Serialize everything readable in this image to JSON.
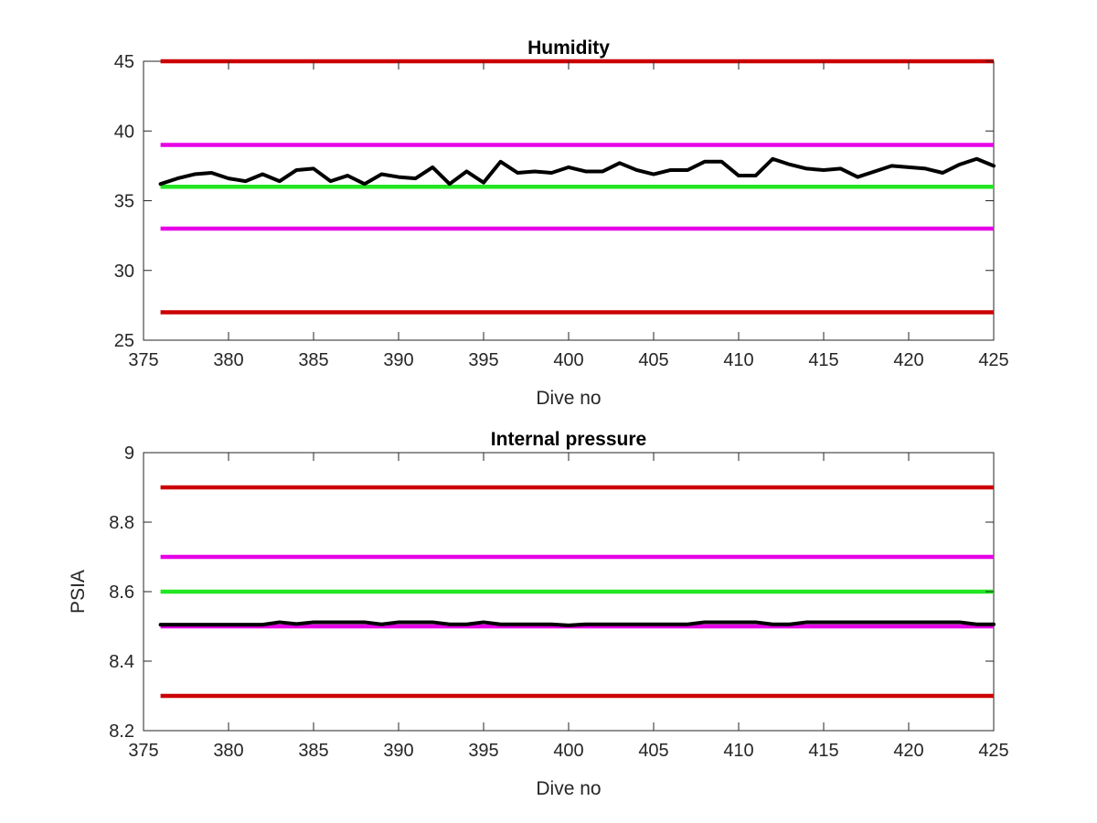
{
  "chart_data": [
    {
      "type": "line",
      "title": "Humidity",
      "xlabel": "Dive no",
      "ylabel": "",
      "xlim": [
        375,
        425
      ],
      "ylim": [
        25,
        45
      ],
      "xticks": [
        375,
        380,
        385,
        390,
        395,
        400,
        405,
        410,
        415,
        420,
        425
      ],
      "yticks": [
        25,
        30,
        35,
        40,
        45
      ],
      "xtick_labels": [
        "375",
        "380",
        "385",
        "390",
        "395",
        "400",
        "405",
        "410",
        "415",
        "420",
        "425"
      ],
      "ytick_labels": [
        "25",
        "30",
        "35",
        "40",
        "45"
      ],
      "grid": false,
      "legend": "none",
      "thresholds": [
        {
          "value": 45,
          "color": "#cc0000",
          "x_range": [
            376,
            425
          ]
        },
        {
          "value": 39,
          "color": "#e600e6",
          "x_range": [
            376,
            425
          ]
        },
        {
          "value": 36,
          "color": "#22e622",
          "x_range": [
            376,
            425
          ]
        },
        {
          "value": 33,
          "color": "#e600e6",
          "x_range": [
            376,
            425
          ]
        },
        {
          "value": 27,
          "color": "#cc0000",
          "x_range": [
            376,
            425
          ]
        }
      ],
      "series": [
        {
          "color": "#000000",
          "x": [
            376,
            377,
            378,
            379,
            380,
            381,
            382,
            383,
            384,
            385,
            386,
            387,
            388,
            389,
            390,
            391,
            392,
            393,
            394,
            395,
            396,
            397,
            398,
            399,
            400,
            401,
            402,
            403,
            404,
            405,
            406,
            407,
            408,
            409,
            410,
            411,
            412,
            413,
            414,
            415,
            416,
            417,
            418,
            419,
            420,
            421,
            422,
            423,
            424,
            425
          ],
          "values": [
            36.2,
            36.6,
            36.9,
            37.0,
            36.6,
            36.4,
            36.9,
            36.4,
            37.2,
            37.3,
            36.4,
            36.8,
            36.2,
            36.9,
            36.7,
            36.6,
            37.4,
            36.2,
            37.1,
            36.3,
            37.8,
            37.0,
            37.1,
            37.0,
            37.4,
            37.1,
            37.1,
            37.7,
            37.2,
            36.9,
            37.2,
            37.2,
            37.8,
            37.8,
            36.8,
            36.8,
            38.0,
            37.6,
            37.3,
            37.2,
            37.3,
            36.7,
            37.1,
            37.5,
            37.4,
            37.3,
            37.0,
            37.6,
            38.0,
            37.5
          ]
        }
      ]
    },
    {
      "type": "line",
      "title": "Internal pressure",
      "xlabel": "Dive no",
      "ylabel": "PSIA",
      "xlim": [
        375,
        425
      ],
      "ylim": [
        8.2,
        9.0
      ],
      "xticks": [
        375,
        380,
        385,
        390,
        395,
        400,
        405,
        410,
        415,
        420,
        425
      ],
      "yticks": [
        8.2,
        8.4,
        8.6,
        8.8,
        9.0
      ],
      "xtick_labels": [
        "375",
        "380",
        "385",
        "390",
        "395",
        "400",
        "405",
        "410",
        "415",
        "420",
        "425"
      ],
      "ytick_labels": [
        "8.2",
        "8.4",
        "8.6",
        "8.8",
        "9"
      ],
      "grid": false,
      "legend": "none",
      "thresholds": [
        {
          "value": 8.9,
          "color": "#cc0000",
          "x_range": [
            376,
            425
          ]
        },
        {
          "value": 8.7,
          "color": "#e600e6",
          "x_range": [
            376,
            425
          ]
        },
        {
          "value": 8.6,
          "color": "#22e622",
          "x_range": [
            376,
            425
          ]
        },
        {
          "value": 8.5,
          "color": "#e600e6",
          "x_range": [
            376,
            425
          ]
        },
        {
          "value": 8.3,
          "color": "#cc0000",
          "x_range": [
            376,
            425
          ]
        }
      ],
      "series": [
        {
          "color": "#000000",
          "x": [
            376,
            377,
            378,
            379,
            380,
            381,
            382,
            383,
            384,
            385,
            386,
            387,
            388,
            389,
            390,
            391,
            392,
            393,
            394,
            395,
            396,
            397,
            398,
            399,
            400,
            401,
            402,
            403,
            404,
            405,
            406,
            407,
            408,
            409,
            410,
            411,
            412,
            413,
            414,
            415,
            416,
            417,
            418,
            419,
            420,
            421,
            422,
            423,
            424,
            425
          ],
          "values": [
            8.505,
            8.505,
            8.505,
            8.505,
            8.505,
            8.505,
            8.505,
            8.512,
            8.507,
            8.512,
            8.512,
            8.512,
            8.512,
            8.506,
            8.512,
            8.512,
            8.512,
            8.506,
            8.506,
            8.512,
            8.506,
            8.506,
            8.506,
            8.506,
            8.503,
            8.506,
            8.506,
            8.506,
            8.506,
            8.506,
            8.506,
            8.506,
            8.512,
            8.512,
            8.512,
            8.512,
            8.506,
            8.506,
            8.512,
            8.512,
            8.512,
            8.512,
            8.512,
            8.512,
            8.512,
            8.512,
            8.512,
            8.512,
            8.506,
            8.506
          ]
        }
      ]
    }
  ]
}
